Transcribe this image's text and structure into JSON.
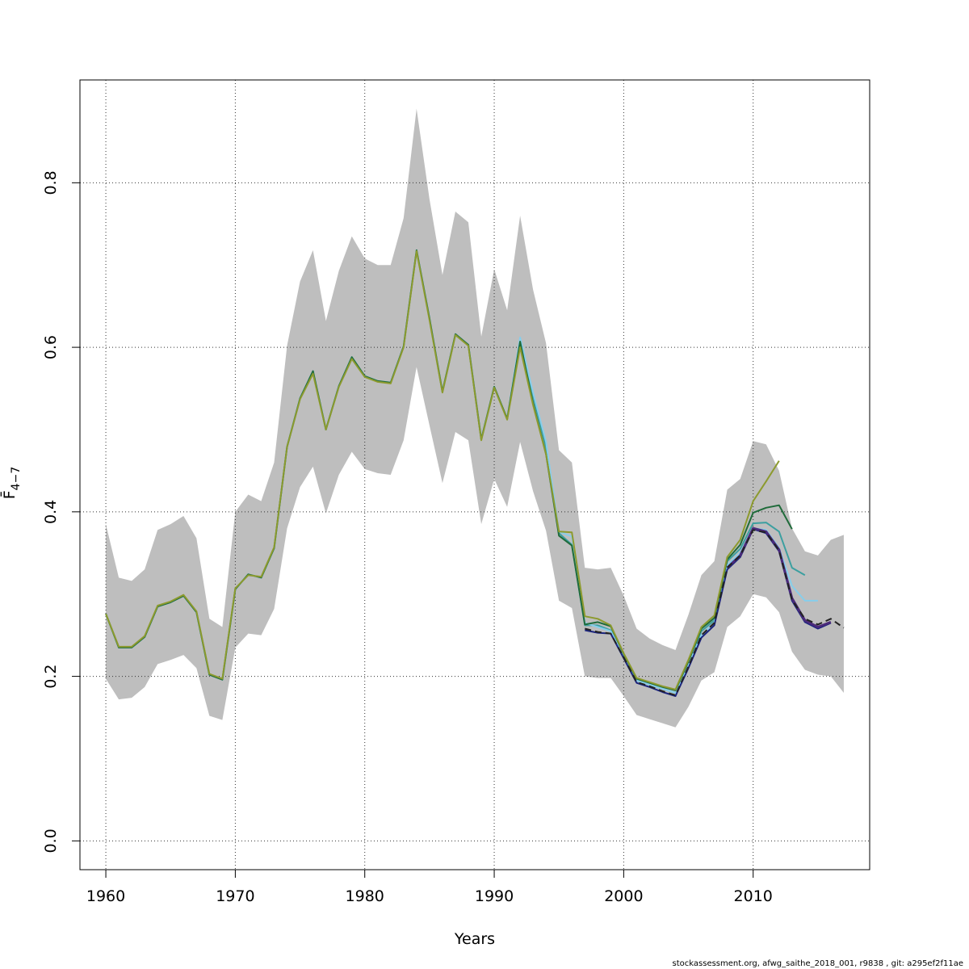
{
  "chart_data": {
    "type": "line",
    "title": "",
    "xlabel": "Years",
    "ylabel": "F̄",
    "ylabel_sub": "4−7",
    "xlim": [
      1958,
      2019
    ],
    "ylim": [
      -0.035,
      0.925
    ],
    "xticks": [
      1960,
      1970,
      1980,
      1990,
      2000,
      2010
    ],
    "yticks": [
      0.0,
      0.2,
      0.4,
      0.6,
      0.8
    ],
    "grid": true,
    "legend": "none",
    "confidence_band": {
      "color": "#bebebe",
      "x": [
        1960,
        1961,
        1962,
        1963,
        1964,
        1965,
        1966,
        1967,
        1968,
        1969,
        1970,
        1971,
        1972,
        1973,
        1974,
        1975,
        1976,
        1977,
        1978,
        1979,
        1980,
        1981,
        1982,
        1983,
        1984,
        1985,
        1986,
        1987,
        1988,
        1989,
        1990,
        1991,
        1992,
        1993,
        1994,
        1995,
        1996,
        1997,
        1998,
        1999,
        2000,
        2001,
        2002,
        2003,
        2004,
        2005,
        2006,
        2007,
        2008,
        2009,
        2010,
        2011,
        2012,
        2013,
        2014,
        2015,
        2016,
        2017
      ],
      "upper": [
        0.385,
        0.32,
        0.316,
        0.33,
        0.378,
        0.385,
        0.395,
        0.368,
        0.27,
        0.26,
        0.4,
        0.421,
        0.413,
        0.46,
        0.602,
        0.68,
        0.718,
        0.632,
        0.693,
        0.735,
        0.708,
        0.7,
        0.7,
        0.757,
        0.89,
        0.78,
        0.688,
        0.765,
        0.752,
        0.613,
        0.695,
        0.645,
        0.76,
        0.67,
        0.605,
        0.475,
        0.46,
        0.332,
        0.33,
        0.332,
        0.298,
        0.258,
        0.246,
        0.238,
        0.232,
        0.275,
        0.323,
        0.34,
        0.427,
        0.44,
        0.486,
        0.482,
        0.45,
        0.38,
        0.352,
        0.347,
        0.366,
        0.372
      ],
      "lower": [
        0.197,
        0.172,
        0.174,
        0.187,
        0.215,
        0.22,
        0.226,
        0.21,
        0.152,
        0.147,
        0.235,
        0.252,
        0.25,
        0.282,
        0.38,
        0.43,
        0.455,
        0.398,
        0.445,
        0.473,
        0.452,
        0.447,
        0.445,
        0.487,
        0.576,
        0.505,
        0.435,
        0.497,
        0.487,
        0.385,
        0.44,
        0.406,
        0.485,
        0.425,
        0.377,
        0.292,
        0.283,
        0.2,
        0.198,
        0.198,
        0.176,
        0.153,
        0.148,
        0.143,
        0.138,
        0.163,
        0.195,
        0.205,
        0.26,
        0.273,
        0.3,
        0.296,
        0.278,
        0.23,
        0.208,
        0.202,
        0.2,
        0.18
      ]
    },
    "series": [
      {
        "color": "#3c9fa0",
        "width": 2,
        "dash": "",
        "x": [
          1960,
          1961,
          1962,
          1963,
          1964,
          1965,
          1966,
          1967,
          1968,
          1969,
          1970,
          1971,
          1972,
          1973,
          1974,
          1975,
          1976,
          1977,
          1978,
          1979,
          1980,
          1981,
          1982,
          1983,
          1984,
          1985,
          1986,
          1987,
          1988,
          1989,
          1990,
          1991,
          1992,
          1993,
          1994,
          1995,
          1996,
          1997,
          1998,
          1999,
          2000,
          2001,
          2002,
          2003,
          2004,
          2005,
          2006,
          2007,
          2008,
          2009,
          2010,
          2011,
          2012,
          2013,
          2014
        ],
        "values": [
          0.276,
          0.235,
          0.235,
          0.248,
          0.285,
          0.29,
          0.298,
          0.278,
          0.202,
          0.196,
          0.306,
          0.324,
          0.32,
          0.356,
          0.479,
          0.538,
          0.571,
          0.5,
          0.553,
          0.588,
          0.565,
          0.559,
          0.557,
          0.601,
          0.718,
          0.635,
          0.546,
          0.616,
          0.603,
          0.488,
          0.552,
          0.513,
          0.61,
          0.54,
          0.478,
          0.374,
          0.36,
          0.262,
          0.262,
          0.256,
          0.226,
          0.195,
          0.19,
          0.185,
          0.18,
          0.218,
          0.255,
          0.268,
          0.34,
          0.355,
          0.386,
          0.387,
          0.376,
          0.332,
          0.323
        ]
      },
      {
        "color": "#87ceeb",
        "width": 2,
        "dash": "",
        "x": [
          1960,
          1961,
          1962,
          1963,
          1964,
          1965,
          1966,
          1967,
          1968,
          1969,
          1970,
          1971,
          1972,
          1973,
          1974,
          1975,
          1976,
          1977,
          1978,
          1979,
          1980,
          1981,
          1982,
          1983,
          1984,
          1985,
          1986,
          1987,
          1988,
          1989,
          1990,
          1991,
          1992,
          1993,
          1994,
          1995,
          1996,
          1997,
          1998,
          1999,
          2000,
          2001,
          2002,
          2003,
          2004,
          2005,
          2006,
          2007,
          2008,
          2009,
          2010,
          2011,
          2012,
          2013,
          2014,
          2015
        ],
        "values": [
          0.276,
          0.235,
          0.235,
          0.248,
          0.285,
          0.29,
          0.298,
          0.278,
          0.202,
          0.196,
          0.306,
          0.324,
          0.32,
          0.356,
          0.479,
          0.538,
          0.571,
          0.5,
          0.553,
          0.588,
          0.565,
          0.559,
          0.557,
          0.601,
          0.718,
          0.635,
          0.546,
          0.616,
          0.603,
          0.488,
          0.552,
          0.513,
          0.612,
          0.545,
          0.485,
          0.376,
          0.37,
          0.265,
          0.26,
          0.255,
          0.225,
          0.195,
          0.19,
          0.185,
          0.18,
          0.215,
          0.25,
          0.265,
          0.335,
          0.35,
          0.38,
          0.378,
          0.356,
          0.31,
          0.292,
          0.292
        ]
      },
      {
        "color": "#1a237e",
        "width": 2,
        "dash": "",
        "x": [
          1997,
          1998,
          1999,
          2000,
          2001,
          2002,
          2003,
          2004,
          2005,
          2006,
          2007,
          2008,
          2009,
          2010,
          2011,
          2012,
          2013,
          2014,
          2015,
          2016
        ],
        "values": [
          0.256,
          0.253,
          0.252,
          0.222,
          0.192,
          0.187,
          0.181,
          0.176,
          0.21,
          0.247,
          0.262,
          0.33,
          0.345,
          0.379,
          0.374,
          0.352,
          0.292,
          0.266,
          0.258,
          0.265
        ]
      },
      {
        "color": "#4b2a7a",
        "width": 3,
        "dash": "",
        "x": [
          2008,
          2009,
          2010,
          2011,
          2012,
          2013,
          2014,
          2015,
          2016
        ],
        "values": [
          0.332,
          0.347,
          0.38,
          0.376,
          0.354,
          0.295,
          0.268,
          0.26,
          0.266
        ]
      },
      {
        "color": "#1f6b3a",
        "width": 2,
        "dash": "",
        "x": [
          1960,
          1961,
          1962,
          1963,
          1964,
          1965,
          1966,
          1967,
          1968,
          1969,
          1970,
          1971,
          1972,
          1973,
          1974,
          1975,
          1976,
          1977,
          1978,
          1979,
          1980,
          1981,
          1982,
          1983,
          1984,
          1985,
          1986,
          1987,
          1988,
          1989,
          1990,
          1991,
          1992,
          1993,
          1994,
          1995,
          1996,
          1997,
          1998,
          1999,
          2000,
          2001,
          2002,
          2003,
          2004,
          2005,
          2006,
          2007,
          2008,
          2009,
          2010,
          2011,
          2012,
          2013
        ],
        "values": [
          0.276,
          0.235,
          0.235,
          0.248,
          0.285,
          0.29,
          0.298,
          0.278,
          0.202,
          0.196,
          0.306,
          0.324,
          0.32,
          0.356,
          0.479,
          0.538,
          0.571,
          0.5,
          0.553,
          0.588,
          0.565,
          0.559,
          0.557,
          0.601,
          0.718,
          0.635,
          0.546,
          0.616,
          0.603,
          0.488,
          0.552,
          0.513,
          0.607,
          0.532,
          0.47,
          0.371,
          0.359,
          0.263,
          0.266,
          0.261,
          0.227,
          0.197,
          0.192,
          0.187,
          0.183,
          0.218,
          0.258,
          0.271,
          0.342,
          0.36,
          0.399,
          0.405,
          0.408,
          0.379
        ]
      },
      {
        "color": "#8c9a2e",
        "width": 2,
        "dash": "",
        "x": [
          1960,
          1961,
          1962,
          1963,
          1964,
          1965,
          1966,
          1967,
          1968,
          1969,
          1970,
          1971,
          1972,
          1973,
          1974,
          1975,
          1976,
          1977,
          1978,
          1979,
          1980,
          1981,
          1982,
          1983,
          1984,
          1985,
          1986,
          1987,
          1988,
          1989,
          1990,
          1991,
          1992,
          1993,
          1994,
          1995,
          1996,
          1997,
          1998,
          1999,
          2000,
          2001,
          2002,
          2003,
          2004,
          2005,
          2006,
          2007,
          2008,
          2009,
          2010,
          2011,
          2012
        ],
        "values": [
          0.276,
          0.236,
          0.236,
          0.249,
          0.286,
          0.291,
          0.299,
          0.279,
          0.203,
          0.197,
          0.307,
          0.323,
          0.321,
          0.357,
          0.479,
          0.537,
          0.568,
          0.5,
          0.552,
          0.586,
          0.564,
          0.558,
          0.556,
          0.6,
          0.717,
          0.633,
          0.545,
          0.615,
          0.602,
          0.487,
          0.551,
          0.512,
          0.6,
          0.53,
          0.47,
          0.376,
          0.375,
          0.273,
          0.27,
          0.262,
          0.228,
          0.198,
          0.193,
          0.188,
          0.184,
          0.22,
          0.26,
          0.274,
          0.345,
          0.366,
          0.413,
          0.437,
          0.462
        ]
      },
      {
        "color": "#222222",
        "width": 2,
        "dash": "8,5",
        "x": [
          1997,
          1998,
          1999,
          2000,
          2001,
          2002,
          2003,
          2004,
          2005,
          2006,
          2007,
          2008,
          2009,
          2010,
          2011,
          2012,
          2013,
          2014,
          2015,
          2016,
          2017
        ],
        "values": [
          0.258,
          0.254,
          0.252,
          0.223,
          0.193,
          0.188,
          0.182,
          0.177,
          0.212,
          0.25,
          0.265,
          0.332,
          0.347,
          0.378,
          0.375,
          0.353,
          0.293,
          0.27,
          0.263,
          0.27,
          0.259
        ]
      }
    ]
  },
  "footer": {
    "text": "stockassessment.org, afwg_saithe_2018_001, r9838 , git: a295ef2f11ae"
  }
}
